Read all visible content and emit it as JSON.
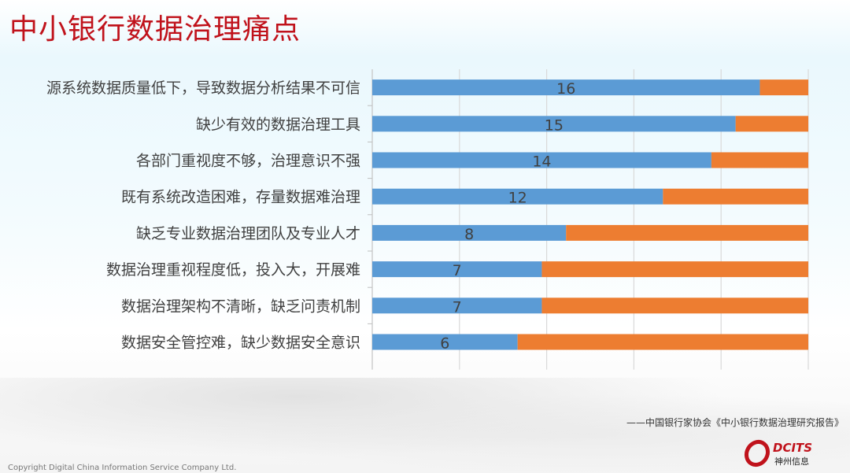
{
  "title": "中小银行数据治理痛点",
  "source": "——中国银行家协会《中小银行数据治理研究报告》",
  "copyright": "Copyright  Digital China Information Service Company Ltd.",
  "logo": {
    "text": "DCITS",
    "subtext": "神州信息"
  },
  "colors": {
    "title": "#c0121b",
    "series1": "#5b9bd5",
    "series2": "#ed7d31"
  },
  "chart_data": {
    "type": "bar",
    "orientation": "horizontal",
    "stacked": true,
    "categories": [
      "源系统数据质量低下，导致数据分析结果不可信",
      "缺少有效的数据治理工具",
      "各部门重视度不够，治理意识不强",
      "既有系统改造困难，存量数据难治理",
      "缺乏专业数据治理团队及专业人才",
      "数据治理重视程度低，投入大，开展难",
      "数据治理架构不清晰，缺乏问责机制",
      "数据安全管控难，缺少数据安全意识"
    ],
    "series": [
      {
        "values": [
          16,
          15,
          14,
          12,
          8,
          7,
          7,
          6
        ],
        "color": "#5b9bd5",
        "data_labels": true
      },
      {
        "values": [
          2,
          3,
          4,
          6,
          10,
          11,
          11,
          12
        ],
        "color": "#ed7d31",
        "data_labels": false
      }
    ],
    "xlim": [
      0,
      18
    ],
    "grid": true,
    "legend": "none"
  }
}
